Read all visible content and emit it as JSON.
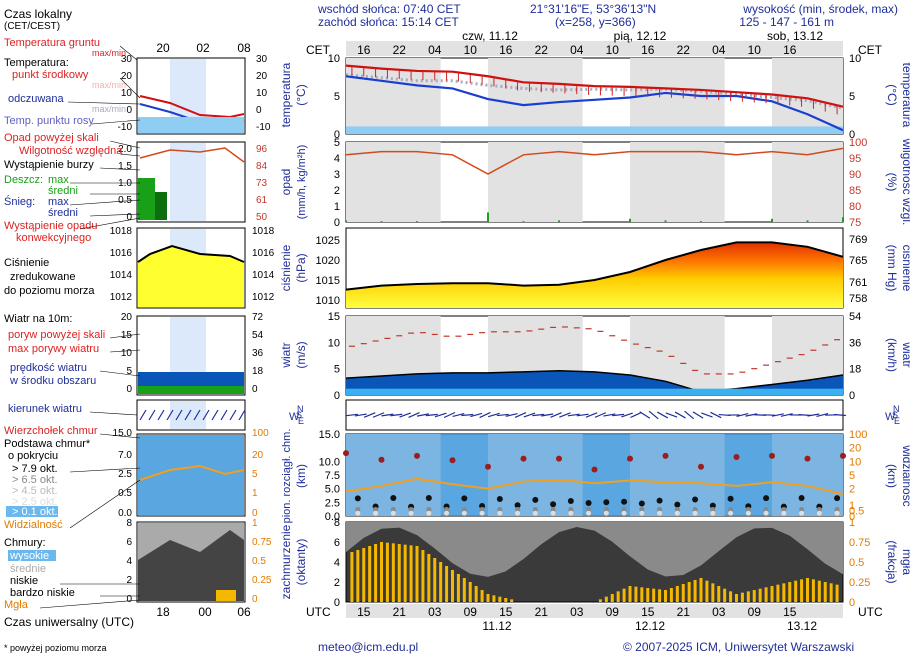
{
  "header": {
    "sunrise": "wschód słońca: 07:40 CET",
    "sunset": "zachód słońca: 15:14 CET",
    "coords": "21°31'16\"E, 53°36'13\"N",
    "grid": "(x=258, y=366)",
    "elev_label": "wysokość (min, środek, max)",
    "elev_values": "125 - 147 - 161 m"
  },
  "legend": {
    "local_time": "Czas lokalny",
    "local_time_sub": "(CET/CEST)",
    "soil_temp": "Temperatura gruntu",
    "soil_temp_sub": "max/min",
    "temperature": "Temperatura:",
    "midpoint": "punkt środkowy",
    "maxmin": "max/min",
    "feels": "odczuwana",
    "feels_mm": "max/min",
    "dew": "Temp. punktu rosy",
    "precip_over": "Opad powyżej skali",
    "humidity": "Wilgotność względna",
    "storm": "Wystąpienie burzy",
    "rain": "Deszcz:",
    "rain_max": "max",
    "rain_mean": "średni",
    "snow": "Śnieg:",
    "snow_max": "max",
    "snow_mean": "średni",
    "conv1": "Wystąpienie opadu",
    "conv2": "konwekcyjnego",
    "pressure1": "Ciśnienie",
    "pressure2": "zredukowane",
    "pressure3": "do poziomu morza",
    "wind10": "Wiatr na 10m:",
    "gust_over": "poryw powyżej skali",
    "gust_max": "max porywy wiatru",
    "wind_speed1": "prędkość wiatru",
    "wind_speed2": "w środku obszaru",
    "wind_dir": "kierunek wiatru",
    "cloud_top": "Wierzchołek chmur",
    "cloud_base1": "Podstawa chmur*",
    "cloud_base2": "o pokryciu",
    "okt79": "> 7.9 okt.",
    "okt65": "> 6.5 okt.",
    "okt45": "> 4.5 okt.",
    "okt25": "> 2.5 okt.",
    "okt01": "> 0.1 okt.",
    "visibility": "Widzialność",
    "clouds": "Chmury:",
    "high": "wysokie",
    "mid": "średnie",
    "low": "niskie",
    "vlow": "bardzo niskie",
    "fog": "Mgła",
    "utc_time": "Czas uniwersalny (UTC)",
    "footnote": "* powyżej poziomu morza"
  },
  "axes": {
    "cet": "CET",
    "utc": "UTC",
    "top_hours": [
      "16",
      "22",
      "04",
      "10",
      "16",
      "22",
      "04",
      "10",
      "16",
      "22",
      "04",
      "10",
      "16"
    ],
    "bottom_hours": [
      "15",
      "21",
      "03",
      "09",
      "15",
      "21",
      "03",
      "09",
      "15",
      "21",
      "03",
      "09",
      "15"
    ],
    "top_days": [
      "czw, 11.12",
      "pią, 12.12",
      "sob, 13.12"
    ],
    "bottom_days": [
      "11.12",
      "12.12",
      "13.12"
    ],
    "legend_top_hours": [
      "20",
      "02",
      "08"
    ],
    "legend_bottom_hours": [
      "18",
      "00",
      "06"
    ],
    "temp_label": "temperatura",
    "temp_unit": "(°C)",
    "precip_label": "opad",
    "precip_unit": "(mm/h, kg/m²h)",
    "hum_label": "wilgotność wzgl.",
    "hum_unit": "(%)",
    "press_label": "ciśnienie",
    "press_unit": "(hPa)",
    "press_unit2": "(mm Hg)",
    "wind_label": "wiatr",
    "wind_unit": "(m/s)",
    "wind_unit2": "(km/h)",
    "cloud_label": "pion. rozciągł. chm.",
    "cloud_unit": "(km)",
    "vis_label": "widzialność",
    "vis_unit": "(km)",
    "cover_label": "zachmurzenie",
    "cover_unit": "(oktanty)",
    "fog_label": "mgła",
    "fog_unit": "(frakcja)",
    "dir_letters": [
      "N",
      "W",
      "E",
      "S"
    ]
  },
  "footer": {
    "email": "meteo@icm.edu.pl",
    "copyright": "© 2007-2025 ICM, Uniwersytet Warszawski"
  },
  "chart_data": [
    {
      "type": "line",
      "title": "temperatura (°C)",
      "x": [
        0,
        6,
        12,
        18,
        24,
        30,
        36,
        42,
        48,
        54,
        60,
        66,
        72,
        78,
        84
      ],
      "series": [
        {
          "name": "temperatura",
          "values": [
            9.0,
            8.6,
            8.3,
            8.2,
            7.6,
            6.8,
            6.6,
            6.3,
            6.2,
            6.0,
            5.8,
            5.5,
            5.2,
            4.7,
            3.6
          ]
        },
        {
          "name": "odczuwana",
          "values": [
            7.6,
            7.0,
            6.4,
            6.0,
            4.6,
            3.8,
            4.2,
            4.5,
            4.8,
            5.4,
            5.0,
            5.0,
            4.3,
            2.6,
            0.5
          ]
        },
        {
          "name": "punkt rosy",
          "values": [
            7.8,
            7.4,
            7.0,
            7.0,
            6.4,
            6.0,
            5.8,
            5.9,
            5.8,
            5.9,
            5.6,
            5.3,
            4.8,
            4.4,
            3.4
          ]
        }
      ],
      "ylim": [
        0,
        10
      ]
    },
    {
      "type": "bar",
      "title": "opad (mm/h) / wilgotność wzgl. (%)",
      "x": [
        0,
        6,
        12,
        18,
        24,
        30,
        36,
        42,
        48,
        54,
        60,
        66,
        72,
        78,
        84
      ],
      "series": [
        {
          "name": "wilgotność",
          "values": [
            96,
            97,
            97,
            96,
            90,
            96,
            97,
            96,
            97,
            97,
            97,
            96,
            97,
            96,
            98
          ]
        },
        {
          "name": "opad",
          "values": [
            0.1,
            0.05,
            0.05,
            0.05,
            0.6,
            0.05,
            0.1,
            0.05,
            0.2,
            0.1,
            0.05,
            0.05,
            0.2,
            0.1,
            0.3
          ]
        }
      ],
      "ylim": [
        0,
        5
      ],
      "y2lim": [
        75,
        100
      ]
    },
    {
      "type": "area",
      "title": "ciśnienie (hPa)",
      "x": [
        0,
        6,
        12,
        18,
        24,
        30,
        36,
        42,
        48,
        54,
        60,
        66,
        72,
        78,
        84
      ],
      "series": [
        {
          "name": "ciśnienie",
          "values": [
            1012.6,
            1013.6,
            1014.0,
            1014.2,
            1014.2,
            1013.6,
            1013.8,
            1015.0,
            1017.0,
            1020.0,
            1022.5,
            1024.4,
            1024.4,
            1023.3,
            1020.8
          ]
        }
      ],
      "ylim": [
        1008,
        1028
      ]
    },
    {
      "type": "line",
      "title": "wiatr (m/s)",
      "x": [
        0,
        6,
        12,
        18,
        24,
        30,
        36,
        42,
        48,
        54,
        60,
        66,
        72,
        78,
        84
      ],
      "series": [
        {
          "name": "porywy",
          "values": [
            9,
            10.5,
            12,
            11,
            12,
            12,
            13,
            12.5,
            10,
            8,
            4,
            4,
            6,
            8,
            11
          ]
        },
        {
          "name": "prędkość",
          "values": [
            3.2,
            3.6,
            4.0,
            4.2,
            4.2,
            4.4,
            4.6,
            4.4,
            3.8,
            2.6,
            0.6,
            1.2,
            2.0,
            2.8,
            3.8
          ]
        }
      ],
      "ylim": [
        0,
        15
      ]
    },
    {
      "type": "line",
      "title": "pion. rozciągł. chm. (km) / widzialność",
      "x": [
        0,
        6,
        12,
        18,
        24,
        30,
        36,
        42,
        48,
        54,
        60,
        66,
        72,
        78,
        84
      ],
      "series": [
        {
          "name": "wierzchołek chmur",
          "values": [
            11.5,
            10.3,
            11.0,
            10.2,
            9.0,
            10.5,
            10.5,
            8.5,
            10.5,
            11.0,
            9.0,
            10.8,
            11.0,
            10.5,
            11.0
          ]
        },
        {
          "name": "widzialność",
          "values": [
            4.5,
            5.5,
            6.8,
            5.8,
            5.0,
            6.3,
            6.6,
            6.0,
            6.5,
            6.2,
            6.0,
            5.5,
            6.2,
            5.5,
            4.0
          ]
        }
      ],
      "ylim": [
        0,
        15
      ]
    },
    {
      "type": "area",
      "title": "zachmurzenie (oktanty) / mgła",
      "x": [
        0,
        6,
        12,
        18,
        24,
        30,
        36,
        42,
        48,
        54,
        60,
        66,
        72,
        78,
        84
      ],
      "series": [
        {
          "name": "mgła",
          "values": [
            0.6,
            0.75,
            0.7,
            0.4,
            0.1,
            0.0,
            0.0,
            0.0,
            0.2,
            0.15,
            0.3,
            0.1,
            0.2,
            0.3,
            0.2
          ]
        },
        {
          "name": "zachmurzenie",
          "values": [
            7.5,
            8,
            8,
            7.5,
            8,
            6,
            7,
            7,
            7.5,
            8,
            7,
            7.5,
            8,
            7.5,
            8
          ]
        }
      ],
      "ylim": [
        0,
        8
      ]
    }
  ]
}
